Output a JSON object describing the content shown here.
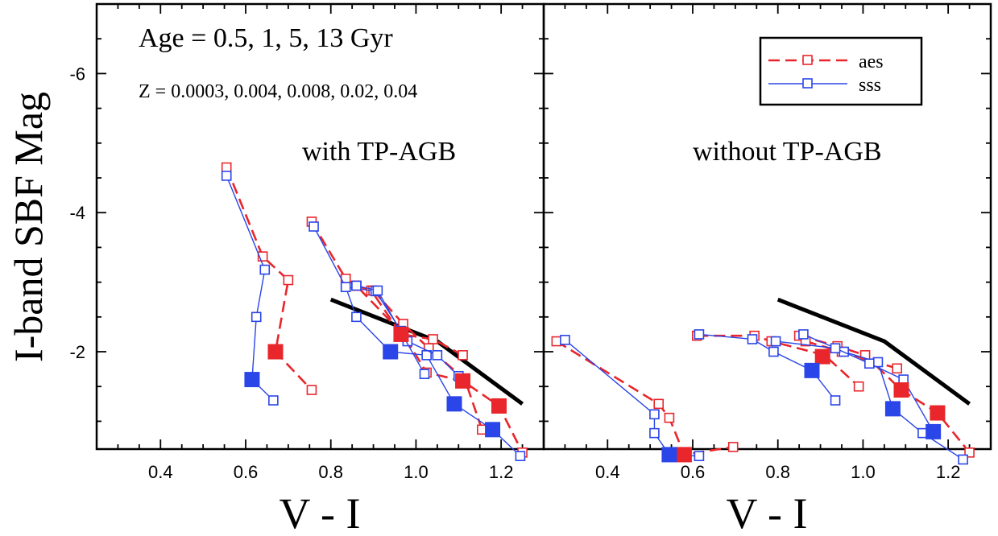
{
  "chart_data": [
    {
      "type": "scatter",
      "annotation_title": "Age = 0.5, 1, 5, 13 Gyr",
      "annotation_subtitle": "Z = 0.0003, 0.004, 0.008, 0.02, 0.04",
      "panel_label": "with TP-AGB",
      "ylabel": "I-band SBF Mag",
      "xlabel": "V - I",
      "xlim": [
        0.25,
        1.3
      ],
      "ylim": [
        -0.6,
        -7.0
      ],
      "x_ticks": [
        "0.4",
        "0.6",
        "0.8",
        "1.0",
        "1.2"
      ],
      "y_ticks": [
        "-6",
        "-4",
        "-2"
      ],
      "series": [
        {
          "name": "aes",
          "color": "#e8262b",
          "style": "dashed",
          "lines": [
            [
              [
                0.555,
                -4.65
              ],
              [
                0.64,
                -3.37
              ],
              [
                0.7,
                -3.03
              ],
              [
                0.67,
                -2.0
              ],
              [
                0.755,
                -1.45
              ]
            ],
            [
              [
                0.755,
                -3.87
              ],
              [
                0.835,
                -3.05
              ],
              [
                0.86,
                -2.95
              ],
              [
                0.895,
                -2.88
              ],
              [
                0.965,
                -2.25
              ],
              [
                1.04,
                -2.18
              ],
              [
                1.11,
                -1.95
              ]
            ],
            [
              [
                0.835,
                -3.05
              ],
              [
                0.86,
                -2.95
              ],
              [
                0.97,
                -2.25
              ],
              [
                1.025,
                -1.7
              ],
              [
                1.11,
                -1.58
              ],
              [
                1.195,
                -1.22
              ],
              [
                1.25,
                -0.55
              ]
            ],
            [
              [
                0.9,
                -2.88
              ],
              [
                0.97,
                -2.4
              ],
              [
                1.03,
                -2.05
              ],
              [
                1.115,
                -1.6
              ],
              [
                1.155,
                -0.88
              ]
            ]
          ]
        },
        {
          "name": "sss",
          "color": "#2a45e8",
          "style": "solid",
          "lines": [
            [
              [
                0.555,
                -4.53
              ],
              [
                0.645,
                -3.18
              ],
              [
                0.625,
                -2.5
              ],
              [
                0.615,
                -1.6
              ],
              [
                0.665,
                -1.3
              ]
            ],
            [
              [
                0.76,
                -3.8
              ],
              [
                0.835,
                -2.93
              ],
              [
                0.86,
                -2.5
              ],
              [
                0.94,
                -2.0
              ],
              [
                1.025,
                -1.95
              ],
              [
                1.09,
                -1.25
              ],
              [
                1.18,
                -0.88
              ],
              [
                1.245,
                -0.5
              ]
            ],
            [
              [
                0.835,
                -2.93
              ],
              [
                0.905,
                -2.87
              ],
              [
                0.965,
                -2.3
              ],
              [
                0.98,
                -2.15
              ],
              [
                1.05,
                -1.95
              ],
              [
                1.1,
                -1.65
              ]
            ],
            [
              [
                0.86,
                -2.95
              ],
              [
                0.91,
                -2.88
              ],
              [
                1.02,
                -1.68
              ]
            ]
          ]
        }
      ],
      "filled_points": {
        "aes": [
          [
            0.67,
            -2.0
          ],
          [
            0.965,
            -2.25
          ],
          [
            1.11,
            -1.58
          ],
          [
            1.195,
            -1.22
          ]
        ],
        "sss": [
          [
            0.615,
            -1.6
          ],
          [
            0.94,
            -2.0
          ],
          [
            1.09,
            -1.25
          ],
          [
            1.18,
            -0.88
          ]
        ]
      },
      "reference_line": [
        [
          0.8,
          -2.75
        ],
        [
          1.05,
          -2.15
        ],
        [
          1.25,
          -1.25
        ]
      ]
    },
    {
      "type": "scatter",
      "panel_label": "without TP-AGB",
      "xlabel": "V - I",
      "xlim": [
        0.25,
        1.3
      ],
      "ylim": [
        -0.6,
        -7.0
      ],
      "x_ticks": [
        "0.4",
        "0.6",
        "0.8",
        "1.0",
        "1.2"
      ],
      "legend": {
        "position": "top-right",
        "entries": [
          {
            "label": "aes",
            "color": "#e8262b",
            "style": "dashed"
          },
          {
            "label": "sss",
            "color": "#2a45e8",
            "style": "solid"
          }
        ]
      },
      "series": [
        {
          "name": "aes",
          "color": "#e8262b",
          "style": "dashed",
          "lines": [
            [
              [
                0.28,
                -2.15
              ],
              [
                0.52,
                -1.25
              ],
              [
                0.545,
                -1.05
              ],
              [
                0.58,
                -0.52
              ],
              [
                0.695,
                -0.63
              ]
            ],
            [
              [
                0.61,
                -2.23
              ],
              [
                0.745,
                -2.23
              ],
              [
                0.785,
                -2.15
              ],
              [
                0.91,
                -1.95
              ],
              [
                0.99,
                -1.5
              ]
            ],
            [
              [
                0.85,
                -2.23
              ],
              [
                0.94,
                -2.08
              ],
              [
                1.005,
                -1.95
              ],
              [
                1.09,
                -1.45
              ],
              [
                1.175,
                -1.12
              ],
              [
                1.25,
                -0.55
              ]
            ],
            [
              [
                0.865,
                -2.15
              ],
              [
                0.95,
                -2.0
              ],
              [
                1.08,
                -1.76
              ]
            ]
          ]
        },
        {
          "name": "sss",
          "color": "#2a45e8",
          "style": "solid",
          "lines": [
            [
              [
                0.3,
                -2.17
              ],
              [
                0.51,
                -1.1
              ],
              [
                0.51,
                -0.83
              ],
              [
                0.545,
                -0.52
              ],
              [
                0.615,
                -0.5
              ]
            ],
            [
              [
                0.615,
                -2.25
              ],
              [
                0.74,
                -2.18
              ],
              [
                0.79,
                -2.0
              ],
              [
                0.88,
                -1.73
              ],
              [
                0.935,
                -1.3
              ]
            ],
            [
              [
                0.86,
                -2.25
              ],
              [
                0.955,
                -2.0
              ],
              [
                1.035,
                -1.85
              ],
              [
                1.07,
                -1.18
              ],
              [
                1.14,
                -0.83
              ],
              [
                1.235,
                -0.45
              ]
            ],
            [
              [
                0.795,
                -2.15
              ],
              [
                0.935,
                -2.05
              ],
              [
                1.015,
                -1.83
              ],
              [
                1.095,
                -1.6
              ],
              [
                1.165,
                -0.85
              ]
            ]
          ]
        }
      ],
      "filled_points": {
        "aes": [
          [
            0.58,
            -0.52
          ],
          [
            0.905,
            -1.93
          ],
          [
            1.09,
            -1.45
          ],
          [
            1.175,
            -1.12
          ]
        ],
        "sss": [
          [
            0.545,
            -0.52
          ],
          [
            0.88,
            -1.73
          ],
          [
            1.07,
            -1.18
          ],
          [
            1.165,
            -0.85
          ]
        ]
      },
      "reference_line": [
        [
          0.8,
          -2.75
        ],
        [
          1.05,
          -2.15
        ],
        [
          1.25,
          -1.25
        ]
      ]
    }
  ]
}
